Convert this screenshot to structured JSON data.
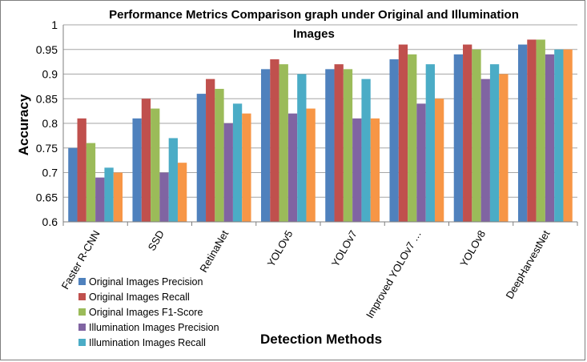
{
  "chart_data": {
    "type": "bar",
    "title_lines": [
      "Performance Metrics Comparison graph under Original and Illumination",
      "Images"
    ],
    "xlabel": "Detection Methods",
    "ylabel": "Accuracy",
    "ylim": [
      0.6,
      1
    ],
    "yticks": [
      "0.6",
      "0.65",
      "0.7",
      "0.75",
      "0.8",
      "0.85",
      "0.9",
      "0.95",
      "1"
    ],
    "grid": true,
    "legend_position": "bottom-left",
    "categories": [
      "Faster R-CNN",
      "SSD",
      "RetinaNet",
      "YOLOv5",
      "YOLOv7",
      "Improved YOLOv7 …",
      "YOLOv8",
      "DeepHarvestNet"
    ],
    "series": [
      {
        "name": "Original Images Precision",
        "color": "#4f81bd",
        "values": [
          0.75,
          0.81,
          0.86,
          0.91,
          0.91,
          0.93,
          0.94,
          0.96
        ]
      },
      {
        "name": "Original Images Recall",
        "color": "#c0504d",
        "values": [
          0.81,
          0.85,
          0.89,
          0.93,
          0.92,
          0.96,
          0.96,
          0.97
        ]
      },
      {
        "name": "Original Images F1-Score",
        "color": "#9bbb59",
        "values": [
          0.76,
          0.83,
          0.87,
          0.92,
          0.91,
          0.94,
          0.95,
          0.97
        ]
      },
      {
        "name": "Illumination Images Precision",
        "color": "#8064a2",
        "values": [
          0.69,
          0.7,
          0.8,
          0.82,
          0.81,
          0.84,
          0.89,
          0.94
        ]
      },
      {
        "name": "Illumination Images Recall",
        "color": "#4bacc6",
        "values": [
          0.71,
          0.77,
          0.84,
          0.9,
          0.89,
          0.92,
          0.92,
          0.95
        ]
      },
      {
        "color": "#f79646",
        "values": [
          0.7,
          0.72,
          0.82,
          0.83,
          0.81,
          0.85,
          0.9,
          0.95
        ]
      }
    ]
  }
}
